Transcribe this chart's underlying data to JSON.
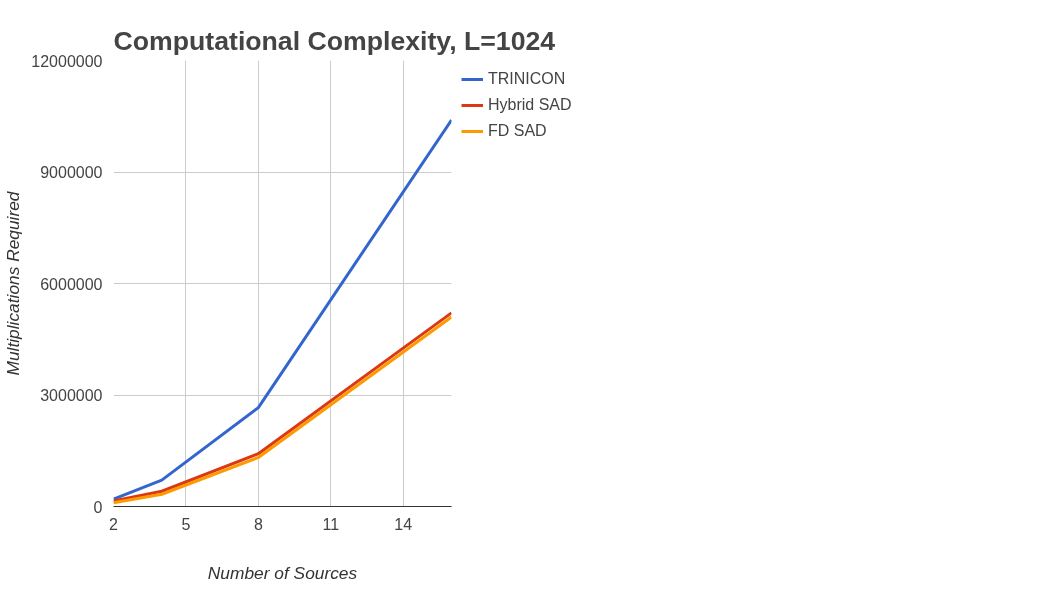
{
  "chart_data": {
    "type": "line",
    "title": "Computational Complexity, L=1024",
    "xlabel": "Number of Sources",
    "ylabel": "Multiplications Required",
    "x": [
      2,
      4,
      8,
      16
    ],
    "series": [
      {
        "name": "TRINICON",
        "color": "#3366cc",
        "values": [
          200000,
          710000,
          2660000,
          10400000
        ]
      },
      {
        "name": "Hybrid SAD",
        "color": "#dc3912",
        "values": [
          150000,
          410000,
          1420000,
          5210000
        ]
      },
      {
        "name": "FD SAD",
        "color": "#ff9900",
        "values": [
          100000,
          330000,
          1320000,
          5100000
        ]
      }
    ],
    "xlim": [
      2,
      16
    ],
    "xticks": [
      2,
      5,
      8,
      11,
      14
    ],
    "ylim": [
      0,
      12000000
    ],
    "yticks": [
      0,
      3000000,
      6000000,
      9000000,
      12000000
    ],
    "grid": true,
    "legend": "top right",
    "marker": "none",
    "line_style": "solid"
  }
}
